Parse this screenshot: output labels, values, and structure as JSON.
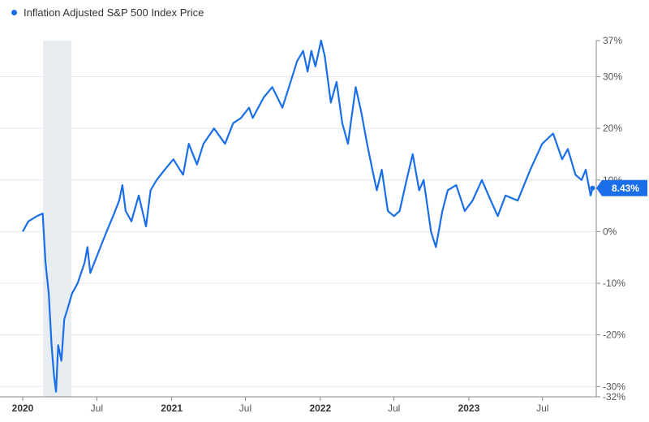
{
  "legend": {
    "label": "Inflation Adjusted S&P 500 Index Price"
  },
  "colors": {
    "series": "#1a6fe8",
    "grid": "#e6e9ee",
    "axis": "#888888",
    "shade": "#e8edf2"
  },
  "chart_data": {
    "type": "line",
    "series": [
      {
        "name": "Inflation Adjusted S&P 500 Index Price",
        "points": [
          [
            "2020-01-01",
            0
          ],
          [
            "2020-01-15",
            2
          ],
          [
            "2020-02-05",
            3
          ],
          [
            "2020-02-19",
            3.5
          ],
          [
            "2020-02-26",
            -6
          ],
          [
            "2020-03-05",
            -12
          ],
          [
            "2020-03-12",
            -22
          ],
          [
            "2020-03-18",
            -28
          ],
          [
            "2020-03-23",
            -31
          ],
          [
            "2020-03-28",
            -22
          ],
          [
            "2020-04-05",
            -25
          ],
          [
            "2020-04-12",
            -17
          ],
          [
            "2020-04-20",
            -15
          ],
          [
            "2020-05-01",
            -12
          ],
          [
            "2020-05-15",
            -10
          ],
          [
            "2020-06-01",
            -6
          ],
          [
            "2020-06-08",
            -3
          ],
          [
            "2020-06-15",
            -8
          ],
          [
            "2020-06-25",
            -6
          ],
          [
            "2020-07-10",
            -3
          ],
          [
            "2020-07-25",
            0
          ],
          [
            "2020-08-10",
            3
          ],
          [
            "2020-08-25",
            6
          ],
          [
            "2020-09-02",
            9
          ],
          [
            "2020-09-10",
            4
          ],
          [
            "2020-09-24",
            2
          ],
          [
            "2020-10-12",
            7
          ],
          [
            "2020-10-30",
            1
          ],
          [
            "2020-11-10",
            8
          ],
          [
            "2020-11-25",
            10
          ],
          [
            "2020-12-15",
            12
          ],
          [
            "2021-01-05",
            14
          ],
          [
            "2021-01-29",
            11
          ],
          [
            "2021-02-12",
            17
          ],
          [
            "2021-03-04",
            13
          ],
          [
            "2021-03-20",
            17
          ],
          [
            "2021-04-15",
            20
          ],
          [
            "2021-05-12",
            17
          ],
          [
            "2021-06-01",
            21
          ],
          [
            "2021-06-20",
            22
          ],
          [
            "2021-07-10",
            24
          ],
          [
            "2021-07-19",
            22
          ],
          [
            "2021-08-15",
            26
          ],
          [
            "2021-09-05",
            28
          ],
          [
            "2021-09-30",
            24
          ],
          [
            "2021-10-20",
            29
          ],
          [
            "2021-11-05",
            33
          ],
          [
            "2021-11-20",
            35
          ],
          [
            "2021-12-01",
            31
          ],
          [
            "2021-12-10",
            35
          ],
          [
            "2021-12-20",
            32
          ],
          [
            "2022-01-03",
            37
          ],
          [
            "2022-01-12",
            34
          ],
          [
            "2022-01-27",
            25
          ],
          [
            "2022-02-10",
            29
          ],
          [
            "2022-02-24",
            21
          ],
          [
            "2022-03-10",
            17
          ],
          [
            "2022-03-29",
            28
          ],
          [
            "2022-04-12",
            23
          ],
          [
            "2022-04-26",
            17
          ],
          [
            "2022-05-09",
            12
          ],
          [
            "2022-05-20",
            8
          ],
          [
            "2022-06-01",
            12
          ],
          [
            "2022-06-16",
            4
          ],
          [
            "2022-07-01",
            3
          ],
          [
            "2022-07-15",
            4
          ],
          [
            "2022-08-01",
            10
          ],
          [
            "2022-08-16",
            15
          ],
          [
            "2022-09-01",
            8
          ],
          [
            "2022-09-12",
            10
          ],
          [
            "2022-09-30",
            0
          ],
          [
            "2022-10-12",
            -3
          ],
          [
            "2022-10-28",
            4
          ],
          [
            "2022-11-10",
            8
          ],
          [
            "2022-12-01",
            9
          ],
          [
            "2022-12-22",
            4
          ],
          [
            "2023-01-10",
            6
          ],
          [
            "2023-02-02",
            10
          ],
          [
            "2023-02-24",
            6
          ],
          [
            "2023-03-13",
            3
          ],
          [
            "2023-04-01",
            7
          ],
          [
            "2023-05-01",
            6
          ],
          [
            "2023-06-01",
            12
          ],
          [
            "2023-06-30",
            17
          ],
          [
            "2023-07-27",
            19
          ],
          [
            "2023-08-18",
            14
          ],
          [
            "2023-09-01",
            16
          ],
          [
            "2023-09-20",
            11
          ],
          [
            "2023-10-05",
            10
          ],
          [
            "2023-10-15",
            12
          ],
          [
            "2023-10-27",
            7
          ],
          [
            "2023-11-01",
            8.43
          ]
        ]
      }
    ],
    "x_ticks": [
      {
        "date": "2020-01-01",
        "label": "2020",
        "bold": true
      },
      {
        "date": "2020-07-01",
        "label": "Jul",
        "bold": false
      },
      {
        "date": "2021-01-01",
        "label": "2021",
        "bold": true
      },
      {
        "date": "2021-07-01",
        "label": "Jul",
        "bold": false
      },
      {
        "date": "2022-01-01",
        "label": "2022",
        "bold": true
      },
      {
        "date": "2022-07-01",
        "label": "Jul",
        "bold": false
      },
      {
        "date": "2023-01-01",
        "label": "2023",
        "bold": true
      },
      {
        "date": "2023-07-01",
        "label": "Jul",
        "bold": false
      }
    ],
    "y_ticks": [
      {
        "value": 37,
        "label": "37%"
      },
      {
        "value": 30,
        "label": "30%"
      },
      {
        "value": 20,
        "label": "20%"
      },
      {
        "value": 10,
        "label": "10%"
      },
      {
        "value": 0,
        "label": "0%"
      },
      {
        "value": -10,
        "label": "-10%"
      },
      {
        "value": -20,
        "label": "-20%"
      },
      {
        "value": -30,
        "label": "-30%"
      },
      {
        "value": -32,
        "label": "-32%"
      }
    ],
    "ylim": [
      -32,
      37
    ],
    "xlim": [
      "2020-01-01",
      "2023-11-10"
    ],
    "recession_band": {
      "start": "2020-02-20",
      "end": "2020-04-30"
    },
    "last_value_label": "8.43%",
    "last_value": 8.43,
    "grid": true,
    "y_axis_position": "right"
  }
}
